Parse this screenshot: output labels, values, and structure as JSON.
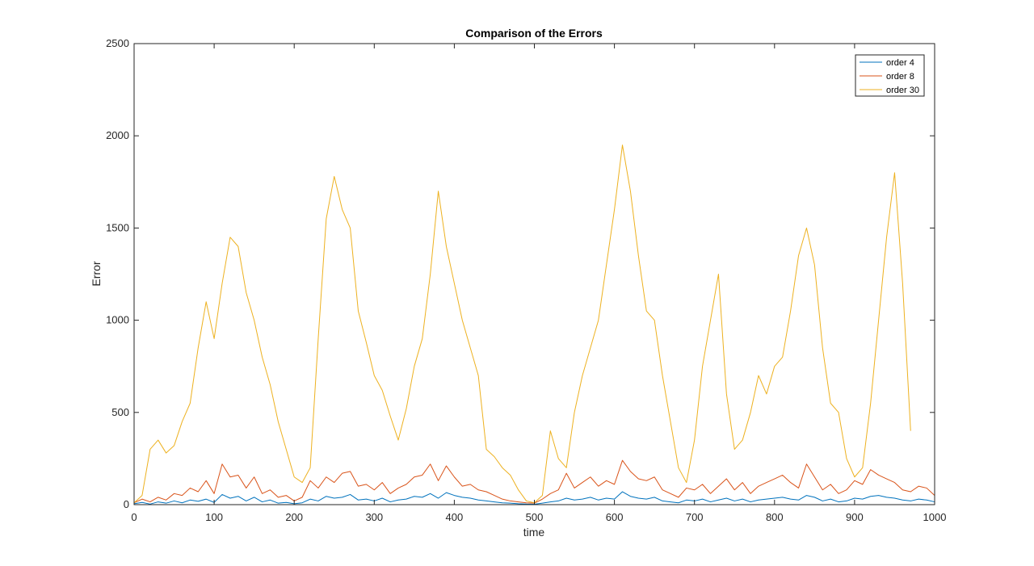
{
  "chart_data": {
    "type": "line",
    "title": "Comparison of the Errors",
    "xlabel": "time",
    "ylabel": "Error",
    "xlim": [
      0,
      1000
    ],
    "ylim": [
      0,
      2500
    ],
    "xticks": [
      "0",
      "100",
      "200",
      "300",
      "400",
      "500",
      "600",
      "700",
      "800",
      "900",
      "1000"
    ],
    "yticks": [
      "0",
      "500",
      "1000",
      "1500",
      "2000",
      "2500"
    ],
    "grid": false,
    "legend_position": "top-right",
    "series": [
      {
        "name": "order 4",
        "color": "#0072BD",
        "x": [
          0,
          10,
          20,
          30,
          40,
          50,
          60,
          70,
          80,
          90,
          100,
          110,
          120,
          130,
          140,
          150,
          160,
          170,
          180,
          190,
          200,
          210,
          220,
          230,
          240,
          250,
          260,
          270,
          280,
          290,
          300,
          310,
          320,
          330,
          340,
          350,
          360,
          370,
          380,
          390,
          400,
          410,
          420,
          430,
          440,
          450,
          460,
          470,
          480,
          490,
          500,
          510,
          520,
          530,
          540,
          550,
          560,
          570,
          580,
          590,
          600,
          610,
          620,
          630,
          640,
          650,
          660,
          670,
          680,
          690,
          700,
          710,
          720,
          730,
          740,
          750,
          760,
          770,
          780,
          790,
          800,
          810,
          820,
          830,
          840,
          850,
          860,
          870,
          880,
          890,
          900,
          910,
          920,
          930,
          940,
          950,
          960,
          970,
          980,
          990,
          1000
        ],
        "values": [
          5,
          12,
          3,
          15,
          8,
          20,
          10,
          25,
          18,
          30,
          12,
          55,
          35,
          45,
          20,
          40,
          15,
          25,
          8,
          12,
          5,
          10,
          30,
          20,
          45,
          35,
          40,
          55,
          25,
          30,
          20,
          35,
          15,
          25,
          30,
          45,
          40,
          60,
          35,
          65,
          50,
          40,
          35,
          25,
          20,
          15,
          10,
          8,
          5,
          3,
          2,
          8,
          15,
          20,
          35,
          25,
          30,
          40,
          25,
          35,
          30,
          70,
          45,
          35,
          30,
          40,
          20,
          15,
          10,
          25,
          20,
          30,
          15,
          25,
          35,
          20,
          30,
          15,
          25,
          30,
          35,
          40,
          30,
          25,
          50,
          40,
          20,
          30,
          15,
          20,
          35,
          30,
          45,
          50,
          40,
          35,
          25,
          20,
          30,
          25,
          15
        ]
      },
      {
        "name": "order 8",
        "color": "#D95319",
        "x": [
          0,
          10,
          20,
          30,
          40,
          50,
          60,
          70,
          80,
          90,
          100,
          110,
          120,
          130,
          140,
          150,
          160,
          170,
          180,
          190,
          200,
          210,
          220,
          230,
          240,
          250,
          260,
          270,
          280,
          290,
          300,
          310,
          320,
          330,
          340,
          350,
          360,
          370,
          380,
          390,
          400,
          410,
          420,
          430,
          440,
          450,
          460,
          470,
          480,
          490,
          500,
          510,
          520,
          530,
          540,
          550,
          560,
          570,
          580,
          590,
          600,
          610,
          620,
          630,
          640,
          650,
          660,
          670,
          680,
          690,
          700,
          710,
          720,
          730,
          740,
          750,
          760,
          770,
          780,
          790,
          800,
          810,
          820,
          830,
          840,
          850,
          860,
          870,
          880,
          890,
          900,
          910,
          920,
          930,
          940,
          950,
          960,
          970,
          980,
          990,
          1000
        ],
        "values": [
          10,
          30,
          15,
          40,
          25,
          60,
          50,
          90,
          70,
          130,
          60,
          220,
          150,
          160,
          90,
          150,
          60,
          80,
          40,
          50,
          20,
          40,
          130,
          90,
          150,
          120,
          170,
          180,
          100,
          110,
          80,
          120,
          60,
          90,
          110,
          150,
          160,
          220,
          130,
          210,
          150,
          100,
          110,
          80,
          70,
          50,
          30,
          20,
          15,
          10,
          8,
          30,
          60,
          80,
          170,
          90,
          120,
          150,
          100,
          130,
          110,
          240,
          180,
          140,
          130,
          150,
          80,
          60,
          40,
          90,
          80,
          110,
          60,
          100,
          140,
          80,
          120,
          60,
          100,
          120,
          140,
          160,
          120,
          90,
          220,
          150,
          80,
          110,
          60,
          80,
          130,
          110,
          190,
          160,
          140,
          120,
          80,
          70,
          100,
          90,
          50
        ]
      },
      {
        "name": "order 30",
        "color": "#EDB120",
        "x": [
          0,
          10,
          20,
          30,
          40,
          50,
          60,
          70,
          80,
          90,
          100,
          110,
          120,
          130,
          140,
          150,
          160,
          170,
          180,
          190,
          200,
          210,
          220,
          230,
          240,
          250,
          260,
          270,
          280,
          290,
          300,
          310,
          320,
          330,
          340,
          350,
          360,
          370,
          380,
          390,
          400,
          410,
          420,
          430,
          440,
          450,
          460,
          470,
          480,
          490,
          500,
          510,
          520,
          530,
          540,
          550,
          560,
          570,
          580,
          590,
          600,
          610,
          620,
          630,
          640,
          650,
          660,
          670,
          680,
          690,
          700,
          710,
          720,
          730,
          740,
          750,
          760,
          770,
          780,
          790,
          800,
          810,
          820,
          830,
          840,
          850,
          860,
          870,
          880,
          890,
          900,
          910,
          920,
          930,
          940,
          950,
          960,
          970,
          980,
          990,
          1000
        ],
        "values": [
          10,
          50,
          300,
          350,
          280,
          320,
          450,
          550,
          850,
          1100,
          900,
          1200,
          1450,
          1400,
          1150,
          1000,
          800,
          650,
          450,
          300,
          150,
          120,
          200,
          900,
          1550,
          1780,
          1600,
          1500,
          1050,
          880,
          700,
          620,
          480,
          350,
          520,
          750,
          900,
          1250,
          1700,
          1400,
          1200,
          1000,
          850,
          700,
          300,
          260,
          200,
          160,
          80,
          20,
          10,
          50,
          400,
          250,
          200,
          500,
          700,
          850,
          1000,
          1300,
          1600,
          1950,
          1700,
          1350,
          1050,
          1000,
          700,
          450,
          200,
          120,
          350,
          750,
          1000,
          1250,
          600,
          300,
          350,
          500,
          700,
          600,
          750,
          800,
          1050,
          1350,
          1500,
          1300,
          850,
          550,
          500,
          250,
          150,
          200,
          550,
          1000,
          1450,
          1800,
          1200,
          400,
          null,
          null,
          null
        ]
      }
    ]
  }
}
